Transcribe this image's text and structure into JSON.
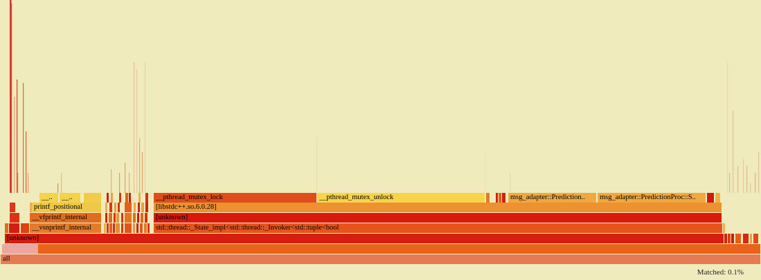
{
  "chart_data": {
    "type": "flamegraph",
    "title": "",
    "frames": [
      {
        "name": "all"
      },
      {
        "name": "[unknown]"
      },
      {
        "name": "__vsnprintf_internal"
      },
      {
        "name": "std::thread::_State_impl<std::thread::_Invoker<std::tuple<bool"
      },
      {
        "name": "__vfprintf_internal"
      },
      {
        "name": "[unknown]"
      },
      {
        "name": "printf_positional"
      },
      {
        "name": "[libstdc++.so.6.0.28]"
      },
      {
        "name": "__.."
      },
      {
        "name": "__.."
      },
      {
        "name": "__pthread_mutex_lock"
      },
      {
        "name": "__pthread_mutex_unlock"
      },
      {
        "name": "msg_adapter::Prediction.."
      },
      {
        "name": "msg_adapter::PredictionProc::S.."
      }
    ]
  },
  "status": {
    "matched_text": "Matched: 0.1%"
  }
}
